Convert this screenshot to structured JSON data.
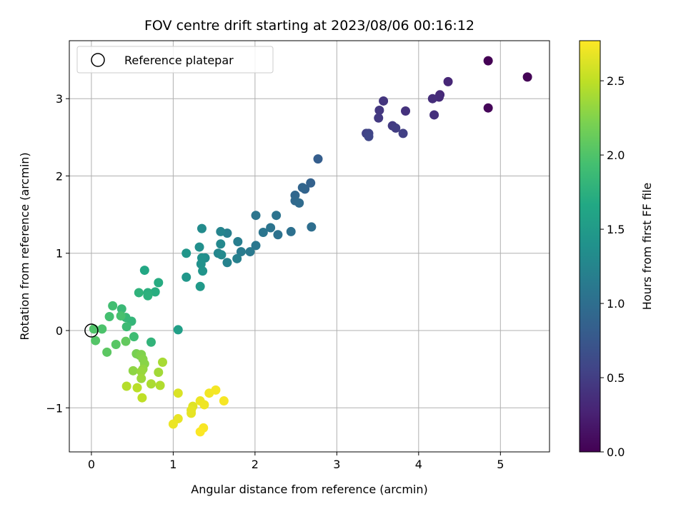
{
  "chart_data": {
    "type": "scatter",
    "title": "FOV centre drift starting at 2023/08/06 00:16:12",
    "xlabel": "Angular distance from reference (arcmin)",
    "ylabel": "Rotation from reference (arcmin)",
    "xlim": [
      -0.27,
      5.6
    ],
    "ylim": [
      -1.57,
      3.75
    ],
    "xticks": [
      0,
      1,
      2,
      3,
      4,
      5
    ],
    "yticks": [
      -1,
      0,
      1,
      2,
      3
    ],
    "xtick_labels": [
      "0",
      "1",
      "2",
      "3",
      "4",
      "5"
    ],
    "ytick_labels": [
      "−1",
      "0",
      "1",
      "2",
      "3"
    ],
    "grid": true,
    "legend": {
      "placement": "top-left",
      "entries": [
        {
          "label": "Reference platepar",
          "marker": "open-circle"
        }
      ]
    },
    "reference_point": {
      "x": 0,
      "y": 0
    },
    "colorbar": {
      "label": "Hours from first FF file",
      "colormap": "viridis",
      "range": [
        0,
        2.77
      ],
      "ticks": [
        0,
        0.5,
        1.0,
        1.5,
        2.0,
        2.5
      ],
      "tick_labels": [
        "0.0",
        "0.5",
        "1.0",
        "1.5",
        "2.0",
        "2.5"
      ]
    },
    "series": [
      {
        "fields": [
          "x",
          "y",
          "hours"
        ],
        "points": [
          [
            4.85,
            3.49,
            0.0
          ],
          [
            5.33,
            3.28,
            0.02
          ],
          [
            4.85,
            2.88,
            0.04
          ],
          [
            4.36,
            3.22,
            0.3
          ],
          [
            4.26,
            3.05,
            0.32
          ],
          [
            4.25,
            3.02,
            0.34
          ],
          [
            4.17,
            3.0,
            0.36
          ],
          [
            4.19,
            2.79,
            0.38
          ],
          [
            3.84,
            2.84,
            0.4
          ],
          [
            3.57,
            2.97,
            0.42
          ],
          [
            3.52,
            2.85,
            0.44
          ],
          [
            3.51,
            2.75,
            0.46
          ],
          [
            3.68,
            2.65,
            0.48
          ],
          [
            3.72,
            2.62,
            0.5
          ],
          [
            3.81,
            2.55,
            0.52
          ],
          [
            3.36,
            2.55,
            0.54
          ],
          [
            3.39,
            2.55,
            0.56
          ],
          [
            3.39,
            2.51,
            0.58
          ],
          [
            2.77,
            2.22,
            0.82
          ],
          [
            2.68,
            1.91,
            0.86
          ],
          [
            2.61,
            1.83,
            0.88
          ],
          [
            2.58,
            1.85,
            0.9
          ],
          [
            2.49,
            1.75,
            0.92
          ],
          [
            2.49,
            1.68,
            0.94
          ],
          [
            2.54,
            1.65,
            0.96
          ],
          [
            2.69,
            1.34,
            1.0
          ],
          [
            2.44,
            1.28,
            1.02
          ],
          [
            2.28,
            1.24,
            1.04
          ],
          [
            2.26,
            1.49,
            1.05
          ],
          [
            2.19,
            1.33,
            1.06
          ],
          [
            2.01,
            1.49,
            1.07
          ],
          [
            2.1,
            1.27,
            1.08
          ],
          [
            2.01,
            1.1,
            1.1
          ],
          [
            1.94,
            1.02,
            1.12
          ],
          [
            1.83,
            1.02,
            1.14
          ],
          [
            1.79,
            1.15,
            1.16
          ],
          [
            1.66,
            1.26,
            1.18
          ],
          [
            1.78,
            0.93,
            1.2
          ],
          [
            1.66,
            0.88,
            1.22
          ],
          [
            1.58,
            1.28,
            1.24
          ],
          [
            1.55,
            1.0,
            1.26
          ],
          [
            1.58,
            1.12,
            1.28
          ],
          [
            1.59,
            0.98,
            1.3
          ],
          [
            1.35,
            1.32,
            1.32
          ],
          [
            1.39,
            0.94,
            1.34
          ],
          [
            1.32,
            1.08,
            1.36
          ],
          [
            1.35,
            0.94,
            1.38
          ],
          [
            1.34,
            0.86,
            1.4
          ],
          [
            1.36,
            0.77,
            1.42
          ],
          [
            1.16,
            1.0,
            1.44
          ],
          [
            1.16,
            0.69,
            1.46
          ],
          [
            1.33,
            0.57,
            1.48
          ],
          [
            1.06,
            0.01,
            1.55
          ],
          [
            0.65,
            0.78,
            1.65
          ],
          [
            0.82,
            0.62,
            1.7
          ],
          [
            0.78,
            0.5,
            1.72
          ],
          [
            0.69,
            0.49,
            1.74
          ],
          [
            0.69,
            0.45,
            1.76
          ],
          [
            0.58,
            0.49,
            1.78
          ],
          [
            0.73,
            -0.15,
            1.8
          ],
          [
            0.49,
            0.12,
            1.82
          ],
          [
            0.42,
            0.17,
            1.84
          ],
          [
            0.37,
            0.28,
            1.86
          ],
          [
            0.43,
            0.05,
            1.88
          ],
          [
            0.52,
            -0.08,
            1.9
          ],
          [
            0.26,
            0.32,
            1.92
          ],
          [
            0.22,
            0.18,
            1.94
          ],
          [
            0.36,
            0.19,
            1.96
          ],
          [
            0.13,
            0.02,
            1.98
          ],
          [
            0.03,
            0.02,
            2.0
          ],
          [
            0.05,
            -0.13,
            2.02
          ],
          [
            0.3,
            -0.18,
            2.04
          ],
          [
            0.19,
            -0.28,
            2.06
          ],
          [
            0.42,
            -0.14,
            2.1
          ],
          [
            0.55,
            -0.3,
            2.2
          ],
          [
            0.59,
            -0.32,
            2.22
          ],
          [
            0.61,
            -0.31,
            2.24
          ],
          [
            0.63,
            -0.37,
            2.26
          ],
          [
            0.65,
            -0.43,
            2.28
          ],
          [
            0.51,
            -0.52,
            2.3
          ],
          [
            0.63,
            -0.5,
            2.32
          ],
          [
            0.61,
            -0.53,
            2.34
          ],
          [
            0.61,
            -0.62,
            2.36
          ],
          [
            0.82,
            -0.54,
            2.38
          ],
          [
            0.87,
            -0.41,
            2.4
          ],
          [
            0.73,
            -0.69,
            2.42
          ],
          [
            0.84,
            -0.71,
            2.44
          ],
          [
            0.43,
            -0.72,
            2.46
          ],
          [
            0.56,
            -0.74,
            2.48
          ],
          [
            0.62,
            -0.87,
            2.5
          ],
          [
            1.06,
            -0.81,
            2.62
          ],
          [
            1.24,
            -0.98,
            2.64
          ],
          [
            1.22,
            -1.03,
            2.66
          ],
          [
            1.22,
            -1.07,
            2.67
          ],
          [
            1.06,
            -1.14,
            2.68
          ],
          [
            1.0,
            -1.21,
            2.69
          ],
          [
            1.33,
            -0.91,
            2.7
          ],
          [
            1.38,
            -0.96,
            2.71
          ],
          [
            1.44,
            -0.81,
            2.72
          ],
          [
            1.52,
            -0.77,
            2.73
          ],
          [
            1.62,
            -0.91,
            2.74
          ],
          [
            1.37,
            -1.26,
            2.75
          ],
          [
            1.33,
            -1.31,
            2.76
          ]
        ]
      }
    ]
  }
}
